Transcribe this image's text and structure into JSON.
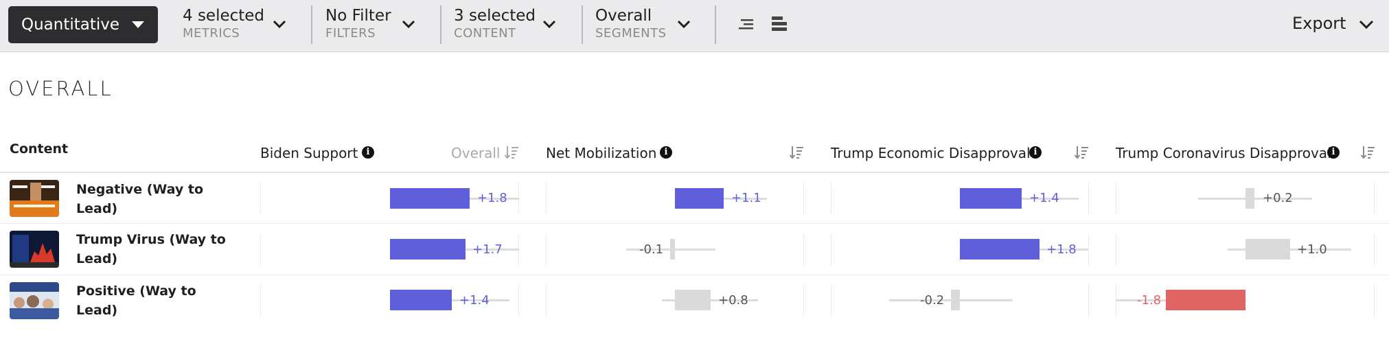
{
  "toolbar": {
    "mode_label": "Quantitative",
    "metrics": {
      "value": "4 selected",
      "label": "METRICS"
    },
    "filters": {
      "value": "No Filter",
      "label": "FILTERS"
    },
    "content": {
      "value": "3 selected",
      "label": "CONTENT"
    },
    "segments": {
      "value": "Overall",
      "label": "SEGMENTS"
    },
    "view_icons": [
      "align-center-icon",
      "bar-list-icon"
    ],
    "export_label": "Export"
  },
  "section_title": "OVERALL",
  "table": {
    "content_header": "Content",
    "overall_sort_label": "Overall",
    "columns": [
      {
        "title": "Biden Support"
      },
      {
        "title": "Net Mobilization"
      },
      {
        "title": "Trump Economic Disapproval"
      },
      {
        "title": "Trump Coronavirus Disapproval"
      }
    ],
    "rows": [
      {
        "title": "Negative (Way to Lead)",
        "thumb": "dark-orange-thumbnail",
        "values": [
          {
            "text": "+1.8",
            "v": 1.8,
            "sig": "pos"
          },
          {
            "text": "+1.1",
            "v": 1.1,
            "sig": "pos"
          },
          {
            "text": "+1.4",
            "v": 1.4,
            "sig": "pos"
          },
          {
            "text": "+0.2",
            "v": 0.2,
            "sig": "neutral"
          }
        ]
      },
      {
        "title": "Trump Virus (Way to Lead)",
        "thumb": "red-chart-thumbnail",
        "values": [
          {
            "text": "+1.7",
            "v": 1.7,
            "sig": "pos"
          },
          {
            "text": "-0.1",
            "v": -0.1,
            "sig": "neutral"
          },
          {
            "text": "+1.8",
            "v": 1.8,
            "sig": "pos"
          },
          {
            "text": "+1.0",
            "v": 1.0,
            "sig": "neutral"
          }
        ]
      },
      {
        "title": "Positive (Way to Lead)",
        "thumb": "crowd-thumbnail",
        "values": [
          {
            "text": "+1.4",
            "v": 1.4,
            "sig": "pos"
          },
          {
            "text": "+0.8",
            "v": 0.8,
            "sig": "neutral"
          },
          {
            "text": "-0.2",
            "v": -0.2,
            "sig": "neutral"
          },
          {
            "text": "-1.8",
            "v": -1.8,
            "sig": "neg"
          }
        ]
      }
    ]
  },
  "colors": {
    "positive": "#5f5fdc",
    "neutral": "#dadada",
    "negative": "#df6464"
  }
}
